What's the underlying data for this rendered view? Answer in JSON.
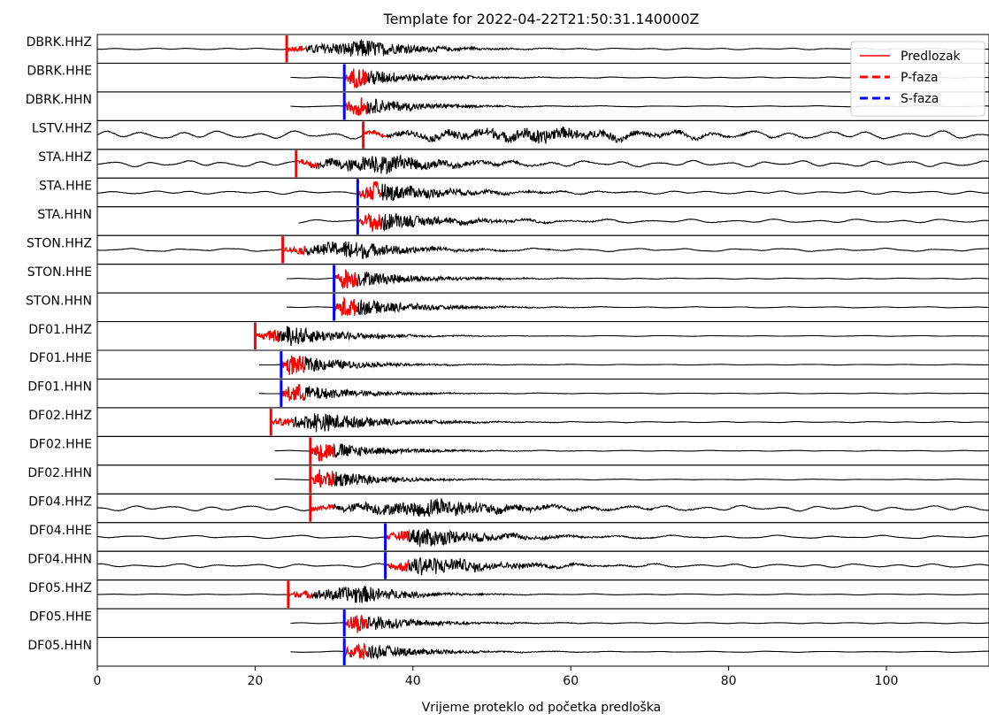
{
  "chart_data": {
    "type": "line",
    "title": "Template for 2022-04-22T21:50:31.140000Z",
    "xlabel": "Vrijeme proteklo od početka predloška",
    "ylabel": "",
    "xlim": [
      0,
      113
    ],
    "xticks": [
      0,
      20,
      40,
      60,
      80,
      100
    ],
    "legend": {
      "position": "top-right",
      "entries": [
        {
          "label": "Predlozak",
          "color": "#ff0000",
          "style": "solid"
        },
        {
          "label": "P-faza",
          "color": "#ff0000",
          "style": "dashed"
        },
        {
          "label": "S-faza",
          "color": "#0000ff",
          "style": "dashed"
        }
      ]
    },
    "trace_color": "#000000",
    "template_color": "#ff0000",
    "p_color": "#ff0000",
    "s_color": "#0000ff",
    "traces": [
      {
        "name": "DBRK.HHZ",
        "start": 0,
        "phase": "P",
        "pick": 24.0,
        "tpl": [
          24.0,
          26.5
        ],
        "burst": 33.0,
        "decay": 7,
        "amp": 0.75,
        "noise": 0.06
      },
      {
        "name": "DBRK.HHE",
        "start": 24.5,
        "phase": "S",
        "pick": 31.3,
        "tpl": [
          31.3,
          34.3
        ],
        "burst": 32.3,
        "decay": 7,
        "amp": 0.75,
        "noise": 0.04
      },
      {
        "name": "DBRK.HHN",
        "start": 24.5,
        "phase": "S",
        "pick": 31.3,
        "tpl": [
          31.3,
          34.3
        ],
        "burst": 32.3,
        "decay": 7,
        "amp": 0.75,
        "noise": 0.04
      },
      {
        "name": "LSTV.HHZ",
        "start": 0,
        "phase": "P",
        "pick": 33.7,
        "tpl": [
          33.7,
          36.7
        ],
        "burst": 55,
        "decay": 12,
        "amp": 0.55,
        "noise": 0.3
      },
      {
        "name": "STA.HHZ",
        "start": 0,
        "phase": "P",
        "pick": 25.2,
        "tpl": [
          25.2,
          28.0
        ],
        "burst": 35.0,
        "decay": 8,
        "amp": 0.75,
        "noise": 0.22
      },
      {
        "name": "STA.HHE",
        "start": 0,
        "phase": "S",
        "pick": 33.0,
        "tpl": [
          33.0,
          36.0
        ],
        "burst": 34.5,
        "decay": 9,
        "amp": 0.75,
        "noise": 0.12
      },
      {
        "name": "STA.HHN",
        "start": 25.5,
        "phase": "S",
        "pick": 33.0,
        "tpl": [
          33.0,
          36.0
        ],
        "burst": 34.5,
        "decay": 9,
        "amp": 0.75,
        "noise": 0.14
      },
      {
        "name": "STON.HHZ",
        "start": 0,
        "phase": "P",
        "pick": 23.5,
        "tpl": [
          23.5,
          26.5
        ],
        "burst": 31.5,
        "decay": 7,
        "amp": 0.75,
        "noise": 0.12
      },
      {
        "name": "STON.HHE",
        "start": 24.0,
        "phase": "S",
        "pick": 30.0,
        "tpl": [
          30.0,
          33.0
        ],
        "burst": 31.0,
        "decay": 8,
        "amp": 0.75,
        "noise": 0.04
      },
      {
        "name": "STON.HHN",
        "start": 24.0,
        "phase": "S",
        "pick": 30.0,
        "tpl": [
          30.0,
          33.0
        ],
        "burst": 31.0,
        "decay": 8,
        "amp": 0.75,
        "noise": 0.04
      },
      {
        "name": "DF01.HHZ",
        "start": 20.0,
        "phase": "P",
        "pick": 20.0,
        "tpl": [
          20.0,
          23.0
        ],
        "burst": 24.0,
        "decay": 7,
        "amp": 0.75,
        "noise": 0.03
      },
      {
        "name": "DF01.HHE",
        "start": 20.5,
        "phase": "S",
        "pick": 23.3,
        "tpl": [
          23.3,
          26.3
        ],
        "burst": 24.3,
        "decay": 7,
        "amp": 0.75,
        "noise": 0.03
      },
      {
        "name": "DF01.HHN",
        "start": 20.5,
        "phase": "S",
        "pick": 23.3,
        "tpl": [
          23.3,
          26.3
        ],
        "burst": 24.3,
        "decay": 7,
        "amp": 0.75,
        "noise": 0.03
      },
      {
        "name": "DF02.HHZ",
        "start": 22.0,
        "phase": "P",
        "pick": 22.0,
        "tpl": [
          22.0,
          25.0
        ],
        "burst": 27.5,
        "decay": 8,
        "amp": 0.75,
        "noise": 0.04
      },
      {
        "name": "DF02.HHE",
        "start": 22.5,
        "phase": "P",
        "pick": 27.0,
        "tpl": [
          27.0,
          30.0
        ],
        "burst": 28.0,
        "decay": 7,
        "amp": 0.75,
        "noise": 0.03
      },
      {
        "name": "DF02.HHN",
        "start": 22.5,
        "phase": "P",
        "pick": 27.0,
        "tpl": [
          27.0,
          30.0
        ],
        "burst": 28.0,
        "decay": 7,
        "amp": 0.75,
        "noise": 0.03
      },
      {
        "name": "DF04.HHZ",
        "start": 0,
        "phase": "P",
        "pick": 27.0,
        "tpl": [
          27.0,
          30.0
        ],
        "burst": 42.0,
        "decay": 10,
        "amp": 0.7,
        "noise": 0.2
      },
      {
        "name": "DF04.HHE",
        "start": 0,
        "phase": "S",
        "pick": 36.5,
        "tpl": [
          36.5,
          39.5
        ],
        "burst": 40.5,
        "decay": 9,
        "amp": 0.75,
        "noise": 0.12
      },
      {
        "name": "DF04.HHN",
        "start": 0,
        "phase": "S",
        "pick": 36.5,
        "tpl": [
          36.5,
          39.5
        ],
        "burst": 40.5,
        "decay": 9,
        "amp": 0.75,
        "noise": 0.14
      },
      {
        "name": "DF05.HHZ",
        "start": 0,
        "phase": "P",
        "pick": 24.2,
        "tpl": [
          24.2,
          27.2
        ],
        "burst": 32.5,
        "decay": 6,
        "amp": 0.75,
        "noise": 0.04
      },
      {
        "name": "DF05.HHE",
        "start": 24.5,
        "phase": "S",
        "pick": 31.3,
        "tpl": [
          31.3,
          34.3
        ],
        "burst": 32.3,
        "decay": 7,
        "amp": 0.75,
        "noise": 0.04
      },
      {
        "name": "DF05.HHN",
        "start": 24.5,
        "phase": "S",
        "pick": 31.3,
        "tpl": [
          31.3,
          34.3
        ],
        "burst": 32.3,
        "decay": 7,
        "amp": 0.75,
        "noise": 0.04
      }
    ]
  }
}
